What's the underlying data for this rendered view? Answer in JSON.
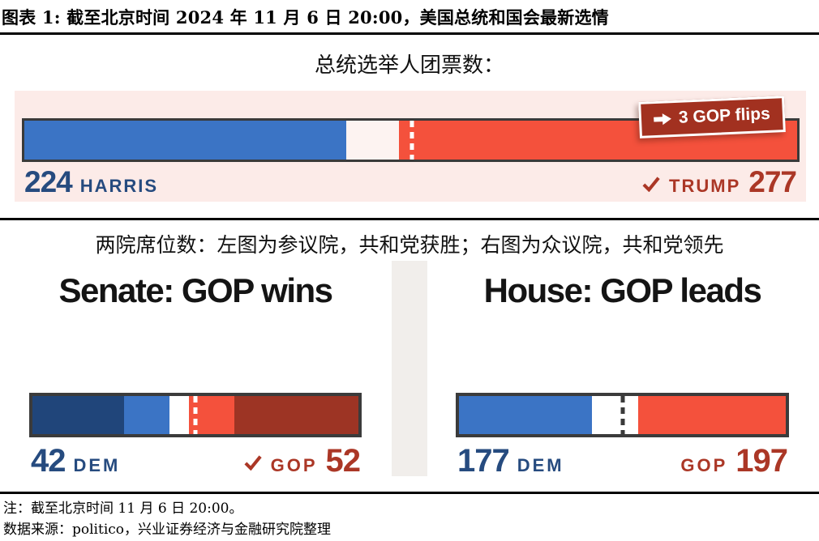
{
  "header": {
    "title": "图表 1: 截至北京时间 2024 年 11 月 6 日 20:00，美国总统和国会最新选情"
  },
  "president": {
    "subtitle": "总统选举人团票数：",
    "badge_label": "3 GOP flips",
    "harris": {
      "votes": "224",
      "name": "HARRIS"
    },
    "trump": {
      "votes": "277",
      "name": "TRUMP"
    }
  },
  "congress": {
    "subtitle": "两院席位数：左图为参议院，共和党获胜；右图为众议院，共和党领先",
    "senate": {
      "title": "Senate: GOP wins",
      "dem": "42",
      "dem_label": "DEM",
      "gop": "52",
      "gop_label": "GOP"
    },
    "house": {
      "title": "House: GOP leads",
      "dem": "177",
      "dem_label": "DEM",
      "gop": "197",
      "gop_label": "GOP"
    }
  },
  "footer": {
    "note": "注：截至北京时间 11 月 6 日 20:00。",
    "source": "数据来源：politico，兴业证券经济与金融研究院整理"
  },
  "colors": {
    "dem_blue": "#3b74c5",
    "gop_red": "#f4513c",
    "dem_navy": "#20457a",
    "gop_brick": "#9d3424",
    "panel_pink": "#fcebe8",
    "dem_text": "#264b7f",
    "gop_text": "#ab3726",
    "badge_red": "#a23120"
  },
  "chart_data": [
    {
      "type": "bar",
      "title": "总统选举人团票数",
      "orientation": "horizontal-stacked",
      "total": 538,
      "majority_marker": 270,
      "winner": "TRUMP",
      "annotation": "3 GOP flips",
      "segments": [
        {
          "name": "Harris DEM electoral votes",
          "value": 224,
          "color": "#3b74c5"
        },
        {
          "name": "uncalled electoral votes",
          "value": 37,
          "color": "#fdf3f1"
        },
        {
          "name": "Trump GOP electoral votes",
          "value": 277,
          "color": "#f4513c"
        }
      ]
    },
    {
      "type": "bar",
      "title": "Senate: GOP wins",
      "orientation": "horizontal-stacked",
      "total": 100,
      "majority_marker": 50,
      "dem_total": 42,
      "gop_total": 52,
      "undecided": 6,
      "winner": "GOP",
      "segments": [
        {
          "name": "DEM seats not up",
          "value": 28,
          "color": "#20457a"
        },
        {
          "name": "DEM seats won",
          "value": 14,
          "color": "#3b74c5"
        },
        {
          "name": "uncalled seats",
          "value": 6,
          "color": "#ffffff"
        },
        {
          "name": "GOP seats won",
          "value": 14,
          "color": "#f4513c"
        },
        {
          "name": "GOP seats not up",
          "value": 38,
          "color": "#9d3424"
        }
      ]
    },
    {
      "type": "bar",
      "title": "House: GOP leads",
      "orientation": "horizontal-stacked",
      "total": 435,
      "majority_marker": 218,
      "dem_total": 177,
      "gop_total": 197,
      "undecided": 61,
      "leader": "GOP",
      "segments": [
        {
          "name": "DEM seats",
          "value": 177,
          "color": "#3b74c5"
        },
        {
          "name": "uncalled seats",
          "value": 61,
          "color": "#ffffff"
        },
        {
          "name": "GOP seats",
          "value": 197,
          "color": "#f4513c"
        }
      ]
    }
  ]
}
